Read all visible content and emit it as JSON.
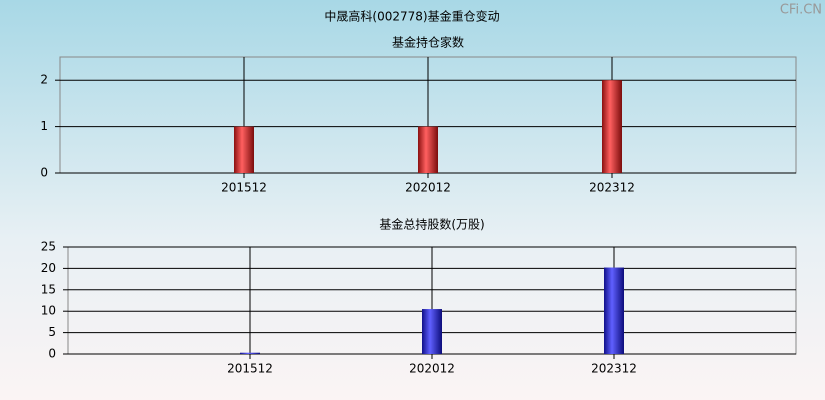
{
  "title": "中晟高科(002778)基金重仓变动",
  "watermark": "CFi.CN",
  "chart_data": [
    {
      "type": "bar",
      "title": "基金持仓家数",
      "categories": [
        "201512",
        "202012",
        "202312"
      ],
      "values": [
        1,
        1,
        2
      ],
      "color": "#e02020",
      "ylim": [
        0,
        2.5
      ],
      "yticks": [
        0,
        1,
        2
      ],
      "grid": true
    },
    {
      "type": "bar",
      "title": "基金总持股数(万股)",
      "categories": [
        "201512",
        "202012",
        "202312"
      ],
      "values": [
        0.3,
        10.5,
        20.2
      ],
      "color": "#2a2ae0",
      "ylim": [
        0,
        25
      ],
      "yticks": [
        0,
        5,
        10,
        15,
        20,
        25
      ],
      "grid": true
    }
  ]
}
